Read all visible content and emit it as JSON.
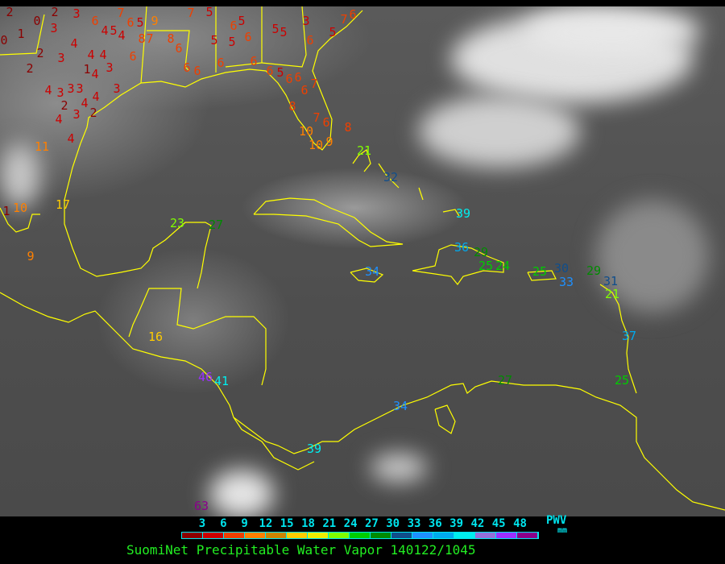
{
  "legend": {
    "ticks": [
      "3",
      "6",
      "9",
      "12",
      "15",
      "18",
      "21",
      "24",
      "27",
      "30",
      "33",
      "36",
      "39",
      "42",
      "45",
      "48"
    ],
    "colors": [
      "#8b0000",
      "#cc0000",
      "#ee4000",
      "#ff8000",
      "#cd8500",
      "#ffcc00",
      "#eeee00",
      "#80ff00",
      "#00cd00",
      "#008b00",
      "#104e8b",
      "#1e90ff",
      "#00aaee",
      "#00eeee",
      "#9370db",
      "#9b30ff",
      "#8b008b"
    ],
    "unit_label": "PWV",
    "unit": "mm"
  },
  "title": "SuomiNet Precipitable Water Vapor 140122/1045",
  "coastline_color": "#ffff00",
  "stations": [
    "2",
    "0",
    "1",
    "0",
    "2",
    "3",
    "3",
    "6",
    "4",
    "5",
    "4",
    "4",
    "2",
    "3",
    "4",
    "4",
    "6",
    "1",
    "4",
    "3",
    "2",
    "4",
    "3",
    "3",
    "3",
    "2",
    "4",
    "4",
    "3",
    "3",
    "2",
    "4",
    "4",
    "6",
    "5",
    "7",
    "9",
    "8",
    "7",
    "8",
    "6",
    "7",
    "5",
    "6",
    "5",
    "5",
    "5",
    "6",
    "6",
    "5",
    "5",
    "6",
    "3",
    "5",
    "7",
    "6",
    "6",
    "6",
    "6",
    "6",
    "5",
    "6",
    "6",
    "6",
    "7",
    "8",
    "7",
    "6",
    "10",
    "10",
    "9",
    "8",
    "21",
    "32",
    "39",
    "36",
    "29",
    "25",
    "24",
    "34",
    "25",
    "30",
    "33",
    "29",
    "31",
    "21",
    "37",
    "25",
    "27",
    "34",
    "11",
    "10",
    "1",
    "17",
    "9",
    "23",
    "27",
    "16",
    "46",
    "41",
    "39",
    "63"
  ]
}
